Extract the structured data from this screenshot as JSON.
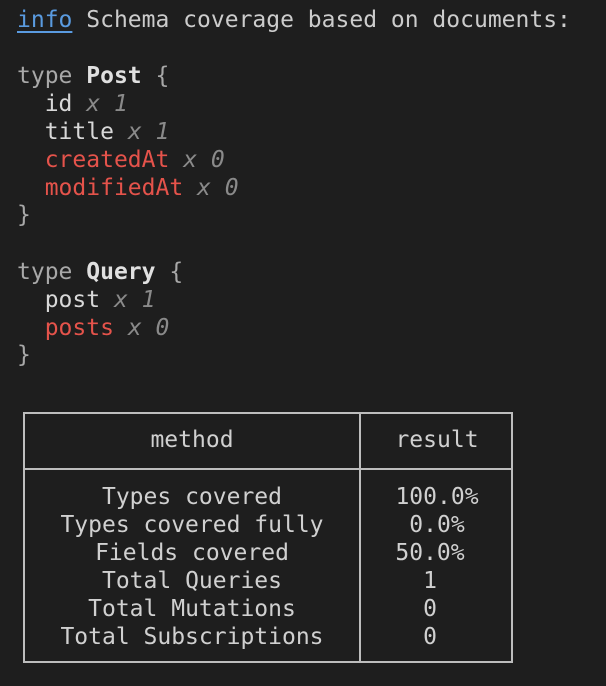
{
  "log": {
    "level": "info",
    "message": "Schema coverage based on documents:"
  },
  "types": [
    {
      "keyword": "type",
      "name": "Post",
      "fields": [
        {
          "name": "id",
          "count": "x 1",
          "covered": true
        },
        {
          "name": "title",
          "count": "x 1",
          "covered": true
        },
        {
          "name": "createdAt",
          "count": "x 0",
          "covered": false
        },
        {
          "name": "modifiedAt",
          "count": "x 0",
          "covered": false
        }
      ]
    },
    {
      "keyword": "type",
      "name": "Query",
      "fields": [
        {
          "name": "post",
          "count": "x 1",
          "covered": true
        },
        {
          "name": "posts",
          "count": "x 0",
          "covered": false
        }
      ]
    }
  ],
  "table": {
    "headers": [
      "method",
      "result"
    ],
    "rows": [
      {
        "method": "Types covered",
        "result": "100.0%"
      },
      {
        "method": "Types covered fully",
        "result": "0.0%"
      },
      {
        "method": "Fields covered",
        "result": "50.0%"
      },
      {
        "method": "Total Queries",
        "result": "1"
      },
      {
        "method": "Total Mutations",
        "result": "0"
      },
      {
        "method": "Total Subscriptions",
        "result": "0"
      }
    ]
  },
  "colors": {
    "background": "#1e1e1e",
    "info": "#5a9be0",
    "uncovered": "#e5534b",
    "count": "#8a8a8a"
  }
}
